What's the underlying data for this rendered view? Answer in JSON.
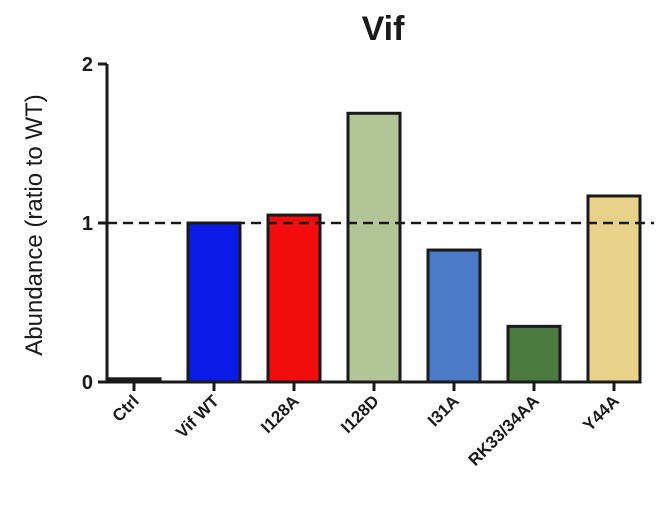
{
  "chart_data": {
    "type": "bar",
    "title": "Vif",
    "xlabel": "",
    "ylabel": "Abundance (ratio to WT)",
    "ylim": [
      0,
      2
    ],
    "yticks": [
      "0",
      "1",
      "2"
    ],
    "reference_line": 1,
    "grid": false,
    "categories": [
      "Ctrl",
      "Vif WT",
      "I128A",
      "I128D",
      "I31A",
      "RK33/34AA",
      "Y44A"
    ],
    "values": [
      0.02,
      1.0,
      1.05,
      1.69,
      0.83,
      0.35,
      1.17
    ],
    "colors": [
      "#1a1a1a",
      "#0a1be8",
      "#f20c0c",
      "#b2c596",
      "#4a7ac8",
      "#4b7a3e",
      "#e8d188"
    ]
  }
}
